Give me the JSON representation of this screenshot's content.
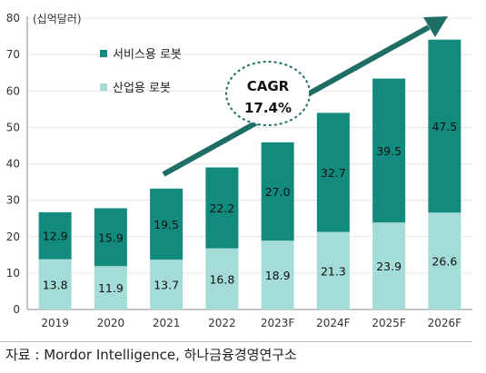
{
  "chart_data": {
    "type": "bar",
    "stacked": true,
    "unit_label": "(십억달러)",
    "categories": [
      "2019",
      "2020",
      "2021",
      "2022",
      "2023F",
      "2024F",
      "2025F",
      "2026F"
    ],
    "series": [
      {
        "name": "산업용 로봇",
        "color": "#a3dcd9",
        "values": [
          13.8,
          11.9,
          13.7,
          16.8,
          18.9,
          21.3,
          23.9,
          26.6
        ]
      },
      {
        "name": "서비스용 로봇",
        "color": "#138a7e",
        "values": [
          12.9,
          15.9,
          19.5,
          22.2,
          27.0,
          32.7,
          39.5,
          47.5
        ]
      }
    ],
    "value_labels": [
      [
        "13.8",
        "11.9",
        "13.7",
        "16.8",
        "18.9",
        "21.3",
        "23.9",
        "26.6"
      ],
      [
        "12.9",
        "15.9",
        "19.5",
        "22.2",
        "27.0",
        "32.7",
        "39.5",
        "47.5"
      ]
    ],
    "ylim": [
      0,
      80
    ],
    "yticks": [
      0,
      10,
      20,
      30,
      40,
      50,
      60,
      70,
      80
    ],
    "legend_placement": "top-left",
    "annotation": {
      "line1": "CAGR",
      "line2": "17.4%"
    },
    "arrow_color": "#1e6e66"
  },
  "source_text": "자료 : Mordor Intelligence, 하나금융경영연구소"
}
